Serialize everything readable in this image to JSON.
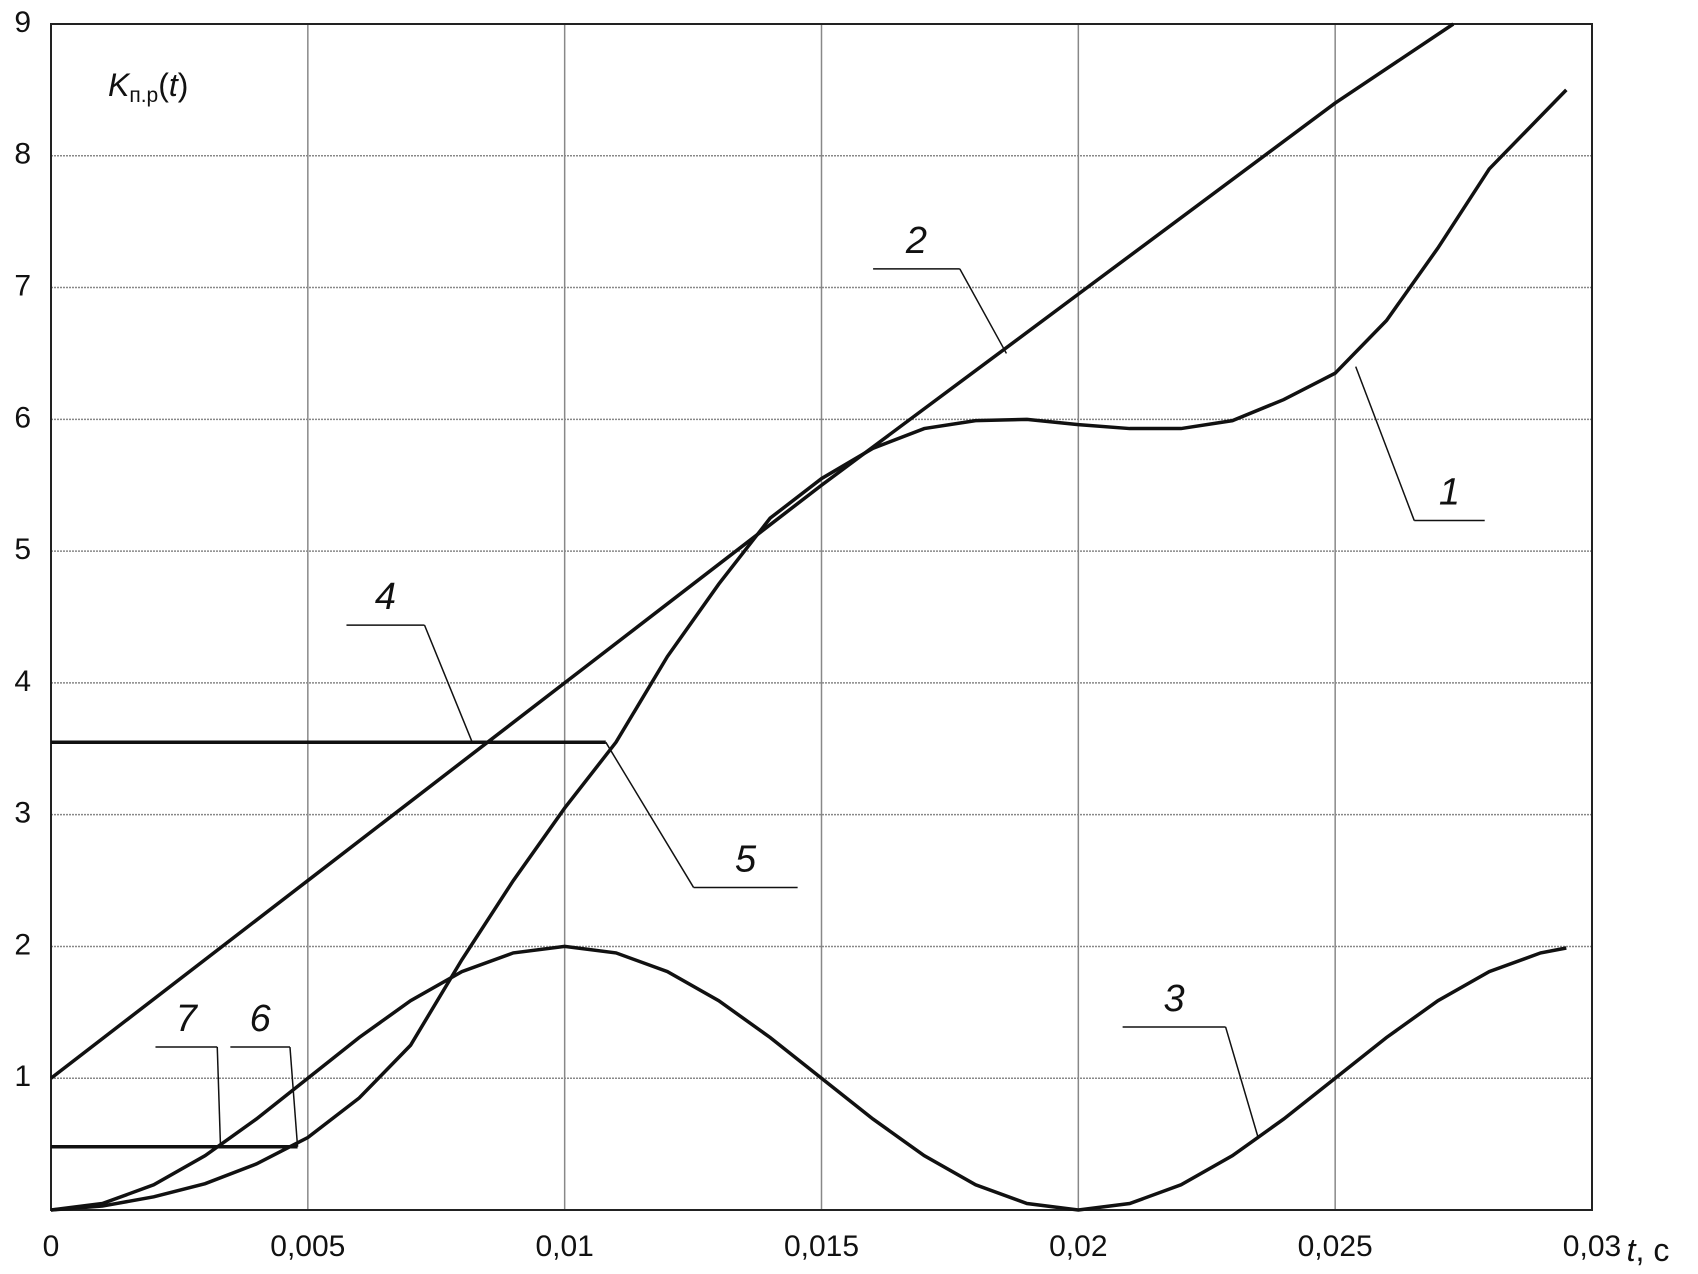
{
  "chart_data": {
    "type": "line",
    "y_label": {
      "main": "K",
      "sub": "п.р",
      "open": "(",
      "var": "t",
      "close": ")"
    },
    "x_label": {
      "var": "t",
      "unit": ", c"
    },
    "xlim": [
      0,
      0.03
    ],
    "ylim": [
      0,
      9
    ],
    "xticks": [
      0,
      {
        "value": 0.005,
        "label": "0,005"
      },
      {
        "value": 0.01,
        "label": "0,01"
      },
      {
        "value": 0.015,
        "label": "0,015"
      },
      {
        "value": 0.02,
        "label": "0,02"
      },
      {
        "value": 0.025,
        "label": "0,025"
      },
      {
        "value": 0.03,
        "label": "0,03"
      }
    ],
    "yticks": [
      1,
      2,
      3,
      4,
      5,
      6,
      7,
      8,
      9
    ],
    "grid": true,
    "color": "#111111",
    "series": [
      {
        "name": "1",
        "x": [
          0,
          0.001,
          0.002,
          0.003,
          0.004,
          0.005,
          0.006,
          0.007,
          0.008,
          0.009,
          0.01,
          0.011,
          0.012,
          0.013,
          0.014,
          0.015,
          0.016,
          0.017,
          0.018,
          0.019,
          0.02,
          0.021,
          0.022,
          0.023,
          0.024,
          0.025,
          0.026,
          0.027,
          0.028,
          0.029,
          0.0295
        ],
        "values": [
          0,
          0.03,
          0.1,
          0.2,
          0.35,
          0.55,
          0.85,
          1.25,
          1.9,
          2.5,
          3.05,
          3.55,
          4.2,
          4.75,
          5.25,
          5.55,
          5.78,
          5.93,
          5.99,
          6.0,
          5.96,
          5.93,
          5.93,
          5.99,
          6.15,
          6.35,
          6.75,
          7.3,
          7.9,
          8.3,
          8.5
        ]
      },
      {
        "name": "2",
        "x": [
          0,
          0.005,
          0.01,
          0.015,
          0.02,
          0.025,
          0.0273
        ],
        "values": [
          1,
          2.5,
          4.0,
          5.5,
          6.95,
          8.4,
          9
        ]
      },
      {
        "name": "3",
        "x": [
          0,
          0.001,
          0.002,
          0.003,
          0.004,
          0.005,
          0.006,
          0.007,
          0.008,
          0.009,
          0.01,
          0.011,
          0.012,
          0.013,
          0.014,
          0.015,
          0.016,
          0.017,
          0.018,
          0.019,
          0.02,
          0.021,
          0.022,
          0.023,
          0.024,
          0.025,
          0.026,
          0.027,
          0.028,
          0.029,
          0.0295
        ],
        "values": [
          0,
          0.049,
          0.191,
          0.412,
          0.691,
          1,
          1.309,
          1.588,
          1.809,
          1.951,
          2,
          1.951,
          1.809,
          1.588,
          1.309,
          1,
          0.691,
          0.412,
          0.191,
          0.049,
          0,
          0.049,
          0.191,
          0.412,
          0.691,
          1,
          1.309,
          1.588,
          1.809,
          1.951,
          1.988
        ]
      }
    ],
    "segments": [
      {
        "y": 3.55,
        "x": [
          0,
          0.0108
        ]
      },
      {
        "y": 0.48,
        "x": [
          0,
          0.0048
        ]
      }
    ],
    "annotations": [
      {
        "text": "1",
        "x": 0.0254,
        "y": 6.4
      },
      {
        "text": "2",
        "x": 0.0186,
        "y": 6.5
      },
      {
        "text": "3",
        "x": 0.0235,
        "y": 0.55
      },
      {
        "text": "4",
        "x": 0.0082,
        "y": 3.55
      },
      {
        "text": "5",
        "x": 0.0108,
        "y": 3.55
      },
      {
        "text": "6",
        "x": 0.0048,
        "y": 0.48
      },
      {
        "text": "7",
        "x": 0.0033,
        "y": 0.48
      }
    ]
  }
}
